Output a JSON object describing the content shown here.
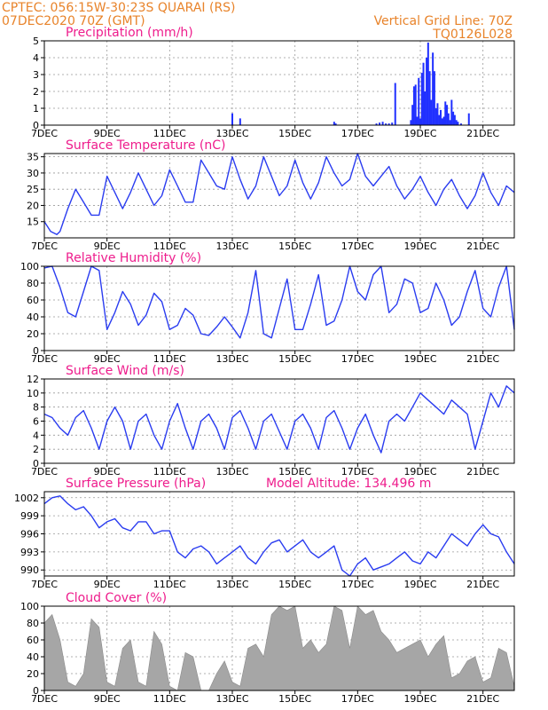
{
  "header": {
    "line1": "CPTEC:  056:15W-30:23S  QUARAI (RS)",
    "line2": "07DEC2020 70Z (GMT)",
    "right1": "Vertical Grid Line: 70Z",
    "right2": "TQ0126L028"
  },
  "x_tick_labels": [
    "7DEC",
    "9DEC",
    "11DEC",
    "13DEC",
    "15DEC",
    "17DEC",
    "19DEC",
    "21DEC"
  ],
  "chart_data": [
    {
      "type": "bar",
      "title": "Precipitation (mm/h)",
      "xlabel": "",
      "ylabel": "",
      "xlim": [
        0,
        15
      ],
      "ylim": [
        0,
        5
      ],
      "yticks": [
        0,
        1,
        2,
        3,
        4,
        5
      ],
      "x": [
        6.0,
        6.25,
        9.25,
        9.3,
        10.6,
        10.7,
        10.8,
        10.9,
        11.0,
        11.1,
        11.2,
        11.7,
        11.75,
        11.8,
        11.85,
        11.9,
        11.95,
        12.0,
        12.05,
        12.1,
        12.15,
        12.2,
        12.25,
        12.3,
        12.35,
        12.4,
        12.45,
        12.5,
        12.55,
        12.6,
        12.65,
        12.7,
        12.75,
        12.8,
        12.85,
        12.9,
        12.95,
        13.0,
        13.05,
        13.1,
        13.15,
        13.2,
        13.3,
        13.55
      ],
      "values": [
        0.7,
        0.4,
        0.2,
        0.1,
        0.1,
        0.15,
        0.2,
        0.1,
        0.1,
        0.15,
        2.5,
        0.3,
        1.2,
        2.3,
        2.4,
        0.5,
        2.8,
        0.4,
        3.1,
        3.7,
        2.0,
        4.0,
        4.9,
        3.2,
        1.5,
        4.3,
        3.2,
        1.0,
        1.3,
        0.6,
        0.9,
        0.4,
        0.5,
        1.4,
        1.2,
        0.7,
        0.3,
        1.5,
        0.8,
        0.6,
        0.3,
        0.2,
        0.1,
        0.7
      ]
    },
    {
      "type": "line",
      "title": "Surface Temperature (nC)",
      "xlabel": "",
      "ylabel": "",
      "xlim": [
        0,
        15
      ],
      "ylim": [
        10,
        36
      ],
      "yticks": [
        15,
        20,
        25,
        30,
        35
      ],
      "x": [
        0,
        0.2,
        0.4,
        0.5,
        0.75,
        1.0,
        1.25,
        1.5,
        1.75,
        2.0,
        2.25,
        2.5,
        2.75,
        3.0,
        3.25,
        3.5,
        3.75,
        4.0,
        4.25,
        4.5,
        4.75,
        5.0,
        5.25,
        5.5,
        5.75,
        6.0,
        6.25,
        6.5,
        6.75,
        7.0,
        7.25,
        7.5,
        7.75,
        8.0,
        8.25,
        8.5,
        8.75,
        9.0,
        9.25,
        9.5,
        9.75,
        10.0,
        10.25,
        10.5,
        10.75,
        11.0,
        11.25,
        11.5,
        11.75,
        12.0,
        12.25,
        12.5,
        12.75,
        13.0,
        13.25,
        13.5,
        13.75,
        14.0,
        14.25,
        14.5,
        14.75,
        15.0
      ],
      "values": [
        15,
        12,
        11,
        12,
        19,
        25,
        21,
        17,
        17,
        29,
        24,
        19,
        24,
        30,
        25,
        20,
        23,
        31,
        26,
        21,
        21,
        34,
        30,
        26,
        25,
        35,
        28,
        22,
        26,
        35,
        29,
        23,
        26,
        34,
        27,
        22,
        27,
        35,
        30,
        26,
        28,
        36,
        29,
        26,
        29,
        32,
        26,
        22,
        25,
        29,
        24,
        20,
        25,
        28,
        23,
        19,
        23,
        30,
        24,
        20,
        26,
        24
      ]
    },
    {
      "type": "line",
      "title": "Relative Humidity (%)",
      "xlabel": "",
      "ylabel": "",
      "xlim": [
        0,
        15
      ],
      "ylim": [
        0,
        100
      ],
      "yticks": [
        0,
        20,
        40,
        60,
        80,
        100
      ],
      "x": [
        0,
        0.25,
        0.5,
        0.75,
        1.0,
        1.25,
        1.5,
        1.75,
        2.0,
        2.25,
        2.5,
        2.75,
        3.0,
        3.25,
        3.5,
        3.75,
        4.0,
        4.25,
        4.5,
        4.75,
        5.0,
        5.25,
        5.5,
        5.75,
        6.0,
        6.25,
        6.5,
        6.75,
        7.0,
        7.25,
        7.5,
        7.75,
        8.0,
        8.25,
        8.5,
        8.75,
        9.0,
        9.25,
        9.5,
        9.75,
        10.0,
        10.25,
        10.5,
        10.75,
        11.0,
        11.25,
        11.5,
        11.75,
        12.0,
        12.25,
        12.5,
        12.75,
        13.0,
        13.25,
        13.5,
        13.75,
        14.0,
        14.25,
        14.5,
        14.75,
        15.0
      ],
      "values": [
        98,
        100,
        75,
        45,
        40,
        70,
        100,
        95,
        25,
        45,
        70,
        55,
        30,
        42,
        68,
        58,
        25,
        30,
        50,
        42,
        20,
        18,
        28,
        40,
        28,
        15,
        45,
        95,
        20,
        15,
        50,
        85,
        25,
        25,
        55,
        90,
        30,
        35,
        60,
        100,
        70,
        60,
        90,
        100,
        45,
        55,
        85,
        80,
        45,
        50,
        80,
        60,
        30,
        40,
        70,
        95,
        50,
        40,
        75,
        100,
        25
      ]
    },
    {
      "type": "line",
      "title": "Surface Wind (m/s)",
      "xlabel": "",
      "ylabel": "",
      "xlim": [
        0,
        15
      ],
      "ylim": [
        0,
        12
      ],
      "yticks": [
        0,
        2,
        4,
        6,
        8,
        10,
        12
      ],
      "x": [
        0,
        0.25,
        0.5,
        0.75,
        1.0,
        1.25,
        1.5,
        1.75,
        2.0,
        2.25,
        2.5,
        2.75,
        3.0,
        3.25,
        3.5,
        3.75,
        4.0,
        4.25,
        4.5,
        4.75,
        5.0,
        5.25,
        5.5,
        5.75,
        6.0,
        6.25,
        6.5,
        6.75,
        7.0,
        7.25,
        7.5,
        7.75,
        8.0,
        8.25,
        8.5,
        8.75,
        9.0,
        9.25,
        9.5,
        9.75,
        10.0,
        10.25,
        10.5,
        10.75,
        11.0,
        11.25,
        11.5,
        11.75,
        12.0,
        12.25,
        12.5,
        12.75,
        13.0,
        13.25,
        13.5,
        13.75,
        14.0,
        14.25,
        14.5,
        14.75,
        15.0
      ],
      "values": [
        7,
        6.5,
        5,
        4,
        6.5,
        7.5,
        5,
        2,
        6,
        8,
        6,
        2,
        6,
        7,
        4,
        2,
        6,
        8.5,
        5,
        2,
        6,
        7,
        5,
        2,
        6.5,
        7.5,
        5,
        2,
        6,
        7,
        4.5,
        2,
        6,
        7,
        5,
        2,
        6.5,
        7.5,
        5,
        2,
        5,
        7,
        4,
        1.5,
        6,
        7,
        6,
        8,
        10,
        9,
        8,
        7,
        9,
        8,
        7,
        2,
        6,
        10,
        8,
        11,
        10
      ]
    },
    {
      "type": "line",
      "title": "Surface Pressure (hPa)",
      "annotation": "Model Altitude: 134.496 m",
      "xlabel": "",
      "ylabel": "",
      "xlim": [
        0,
        15
      ],
      "ylim": [
        989,
        1003
      ],
      "yticks": [
        990,
        993,
        996,
        999,
        1002
      ],
      "x": [
        0,
        0.25,
        0.5,
        0.75,
        1.0,
        1.25,
        1.5,
        1.75,
        2.0,
        2.25,
        2.5,
        2.75,
        3.0,
        3.25,
        3.5,
        3.75,
        4.0,
        4.25,
        4.5,
        4.75,
        5.0,
        5.25,
        5.5,
        5.75,
        6.0,
        6.25,
        6.5,
        6.75,
        7.0,
        7.25,
        7.5,
        7.75,
        8.0,
        8.25,
        8.5,
        8.75,
        9.0,
        9.25,
        9.5,
        9.75,
        10.0,
        10.25,
        10.5,
        10.75,
        11.0,
        11.25,
        11.5,
        11.75,
        12.0,
        12.25,
        12.5,
        12.75,
        13.0,
        13.25,
        13.5,
        13.75,
        14.0,
        14.25,
        14.5,
        14.75,
        15.0
      ],
      "values": [
        1001,
        1002,
        1002.3,
        1001,
        1000,
        1000.5,
        999,
        997,
        998,
        998.5,
        997,
        996.5,
        998,
        998,
        996,
        996.5,
        996.5,
        993,
        992,
        993.5,
        994,
        993,
        991,
        992,
        993,
        994,
        992,
        991,
        993,
        994.5,
        995,
        993,
        994,
        995,
        993,
        992,
        993,
        994,
        990,
        989,
        991,
        992,
        990,
        990.5,
        991,
        992,
        993,
        991.5,
        991,
        993,
        992,
        994,
        996,
        995,
        994,
        996,
        997.5,
        996,
        995.5,
        993,
        991
      ]
    },
    {
      "type": "area",
      "title": "Cloud Cover (%)",
      "xlabel": "",
      "ylabel": "",
      "xlim": [
        0,
        15
      ],
      "ylim": [
        0,
        100
      ],
      "yticks": [
        0,
        20,
        40,
        60,
        80,
        100
      ],
      "x": [
        0,
        0.25,
        0.5,
        0.75,
        1.0,
        1.25,
        1.5,
        1.75,
        2.0,
        2.25,
        2.5,
        2.75,
        3.0,
        3.25,
        3.5,
        3.75,
        4.0,
        4.25,
        4.5,
        4.75,
        5.0,
        5.25,
        5.5,
        5.75,
        6.0,
        6.25,
        6.5,
        6.75,
        7.0,
        7.25,
        7.5,
        7.75,
        8.0,
        8.25,
        8.5,
        8.75,
        9.0,
        9.25,
        9.5,
        9.75,
        10.0,
        10.25,
        10.5,
        10.75,
        11.0,
        11.25,
        11.5,
        11.75,
        12.0,
        12.25,
        12.5,
        12.75,
        13.0,
        13.25,
        13.5,
        13.75,
        14.0,
        14.25,
        14.5,
        14.75,
        15.0
      ],
      "values": [
        80,
        90,
        60,
        10,
        5,
        20,
        85,
        75,
        10,
        5,
        50,
        60,
        10,
        5,
        70,
        55,
        5,
        0,
        45,
        40,
        0,
        0,
        20,
        35,
        10,
        5,
        50,
        55,
        40,
        90,
        100,
        95,
        100,
        50,
        60,
        45,
        55,
        100,
        95,
        50,
        100,
        90,
        95,
        70,
        60,
        45,
        50,
        55,
        60,
        40,
        55,
        65,
        15,
        20,
        35,
        40,
        10,
        15,
        50,
        45,
        5
      ]
    }
  ]
}
